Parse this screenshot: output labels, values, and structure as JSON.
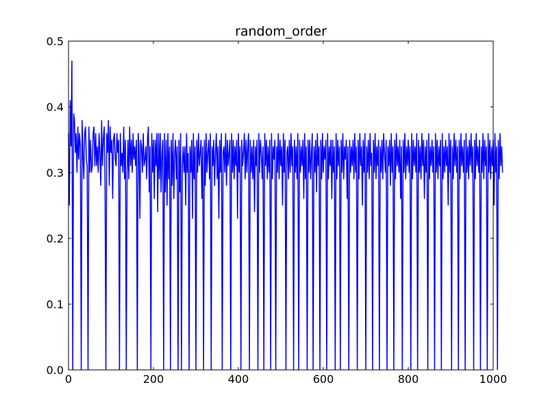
{
  "chart_data": {
    "type": "line",
    "title": "random_order",
    "xlabel": "",
    "ylabel": "",
    "xlim": [
      0,
      1000
    ],
    "ylim": [
      0,
      0.5
    ],
    "grid": false,
    "legend": "none",
    "line_color": "#0000ff",
    "x_ticks": [
      0,
      200,
      400,
      600,
      800,
      1000
    ],
    "y_ticks": [
      0.0,
      0.1,
      0.2,
      0.3,
      0.4,
      0.5
    ],
    "x_tick_labels": [
      "0",
      "200",
      "400",
      "600",
      "800",
      "1000"
    ],
    "y_tick_labels": [
      "0.0",
      "0.1",
      "0.2",
      "0.3",
      "0.4",
      "0.5"
    ],
    "series": [
      {
        "x_step": 2,
        "values": [
          0.36,
          0.25,
          0.41,
          0.34,
          0.47,
          0.0,
          0.39,
          0.38,
          0.33,
          0.36,
          0.3,
          0.37,
          0.32,
          0.36,
          0.34,
          0.0,
          0.38,
          0.33,
          0.29,
          0.36,
          0.37,
          0.32,
          0.31,
          0.0,
          0.37,
          0.3,
          0.35,
          0.3,
          0.31,
          0.36,
          0.37,
          0.31,
          0.36,
          0.31,
          0.34,
          0.3,
          0.36,
          0.33,
          0.28,
          0.38,
          0.31,
          0.35,
          0.37,
          0.29,
          0.0,
          0.36,
          0.33,
          0.38,
          0.28,
          0.37,
          0.33,
          0.35,
          0.26,
          0.35,
          0.36,
          0.32,
          0.31,
          0.36,
          0.33,
          0.35,
          0.0,
          0.36,
          0.31,
          0.33,
          0.3,
          0.37,
          0.29,
          0.35,
          0.0,
          0.3,
          0.35,
          0.29,
          0.37,
          0.31,
          0.35,
          0.3,
          0.36,
          0.32,
          0.34,
          0.31,
          0.35,
          0.0,
          0.36,
          0.34,
          0.23,
          0.35,
          0.34,
          0.3,
          0.36,
          0.31,
          0.32,
          0.34,
          0.29,
          0.35,
          0.37,
          0.27,
          0.34,
          0.0,
          0.36,
          0.3,
          0.35,
          0.26,
          0.35,
          0.31,
          0.36,
          0.24,
          0.36,
          0.29,
          0.36,
          0.27,
          0.33,
          0.35,
          0.0,
          0.36,
          0.27,
          0.35,
          0.25,
          0.36,
          0.29,
          0.34,
          0.0,
          0.35,
          0.28,
          0.36,
          0.26,
          0.33,
          0.35,
          0.29,
          0.34,
          0.0,
          0.35,
          0.27,
          0.36,
          0.0,
          0.31,
          0.34,
          0.3,
          0.34,
          0.25,
          0.36,
          0.3,
          0.33,
          0.0,
          0.34,
          0.3,
          0.35,
          0.23,
          0.36,
          0.29,
          0.34,
          0.0,
          0.35,
          0.3,
          0.36,
          0.31,
          0.33,
          0.35,
          0.26,
          0.34,
          0.0,
          0.35,
          0.28,
          0.36,
          0.3,
          0.33,
          0.35,
          0.29,
          0.36,
          0.0,
          0.34,
          0.31,
          0.35,
          0.28,
          0.33,
          0.36,
          0.29,
          0.34,
          0.23,
          0.35,
          0.3,
          0.36,
          0.0,
          0.33,
          0.34,
          0.3,
          0.36,
          0.28,
          0.35,
          0.31,
          0.33,
          0.35,
          0.0,
          0.36,
          0.3,
          0.35,
          0.29,
          0.34,
          0.31,
          0.35,
          0.23,
          0.36,
          0.3,
          0.34,
          0.0,
          0.35,
          0.31,
          0.33,
          0.36,
          0.29,
          0.35,
          0.3,
          0.34,
          0.36,
          0.0,
          0.35,
          0.3,
          0.34,
          0.29,
          0.35,
          0.24,
          0.34,
          0.31,
          0.35,
          0.0,
          0.36,
          0.3,
          0.35,
          0.33,
          0.29,
          0.34,
          0.0,
          0.36,
          0.31,
          0.35,
          0.29,
          0.34,
          0.3,
          0.35,
          0.0,
          0.36,
          0.29,
          0.34,
          0.32,
          0.35,
          0.0,
          0.34,
          0.3,
          0.36,
          0.29,
          0.35,
          0.31,
          0.34,
          0.25,
          0.36,
          0.3,
          0.35,
          0.0,
          0.33,
          0.34,
          0.29,
          0.35,
          0.3,
          0.36,
          0.31,
          0.34,
          0.0,
          0.35,
          0.3,
          0.34,
          0.29,
          0.36,
          0.0,
          0.35,
          0.3,
          0.34,
          0.31,
          0.35,
          0.26,
          0.36,
          0.29,
          0.34,
          0.0,
          0.35,
          0.3,
          0.35,
          0.29,
          0.33,
          0.36,
          0.0,
          0.34,
          0.3,
          0.35,
          0.27,
          0.36,
          0.31,
          0.34,
          0.0,
          0.35,
          0.29,
          0.36,
          0.3,
          0.34,
          0.32,
          0.35,
          0.0,
          0.36,
          0.29,
          0.34,
          0.31,
          0.35,
          0.26,
          0.35,
          0.3,
          0.34,
          0.0,
          0.36,
          0.29,
          0.35,
          0.31,
          0.34,
          0.0,
          0.35,
          0.3,
          0.36,
          0.29,
          0.34,
          0.32,
          0.35,
          0.26,
          0.34,
          0.0,
          0.35,
          0.3,
          0.34,
          0.31,
          0.35,
          0.29,
          0.36,
          0.3,
          0.34,
          0.0,
          0.35,
          0.29,
          0.36,
          0.31,
          0.34,
          0.25,
          0.35,
          0.3,
          0.36,
          0.0,
          0.34,
          0.3,
          0.35,
          0.29,
          0.36,
          0.31,
          0.33,
          0.0,
          0.35,
          0.3,
          0.36,
          0.29,
          0.34,
          0.31,
          0.35,
          0.0,
          0.34,
          0.3,
          0.35,
          0.29,
          0.36,
          0.33,
          0.3,
          0.35,
          0.0,
          0.34,
          0.31,
          0.35,
          0.28,
          0.36,
          0.3,
          0.34,
          0.0,
          0.35,
          0.29,
          0.36,
          0.31,
          0.34,
          0.3,
          0.35,
          0.26,
          0.34,
          0.0,
          0.35,
          0.3,
          0.36,
          0.29,
          0.34,
          0.31,
          0.35,
          0.3,
          0.34,
          0.0,
          0.36,
          0.29,
          0.35,
          0.31,
          0.34,
          0.3,
          0.36,
          0.0,
          0.35,
          0.3,
          0.34,
          0.29,
          0.36,
          0.31,
          0.35,
          0.26,
          0.34,
          0.3,
          0.35,
          0.0,
          0.36,
          0.29,
          0.34,
          0.31,
          0.35,
          0.3,
          0.34,
          0.0,
          0.36,
          0.3,
          0.35,
          0.29,
          0.34,
          0.31,
          0.35,
          0.0,
          0.36,
          0.29,
          0.34,
          0.3,
          0.35,
          0.31,
          0.34,
          0.25,
          0.36,
          0.3,
          0.35,
          0.0,
          0.34,
          0.29,
          0.36,
          0.31,
          0.35,
          0.3,
          0.34,
          0.0,
          0.35,
          0.29,
          0.36,
          0.31,
          0.34,
          0.3,
          0.35,
          0.0,
          0.36,
          0.3,
          0.34,
          0.29,
          0.35,
          0.31,
          0.36,
          0.3,
          0.34,
          0.0,
          0.35,
          0.29,
          0.36,
          0.31,
          0.34,
          0.3,
          0.35,
          0.0,
          0.34,
          0.3,
          0.36,
          0.29,
          0.35,
          0.31,
          0.34,
          0.0,
          0.36,
          0.3,
          0.35,
          0.29,
          0.34,
          0.31,
          0.35,
          0.25,
          0.36,
          0.3,
          0.34,
          0.0,
          0.35,
          0.29,
          0.36,
          0.31,
          0.34,
          0.3
        ]
      }
    ]
  }
}
